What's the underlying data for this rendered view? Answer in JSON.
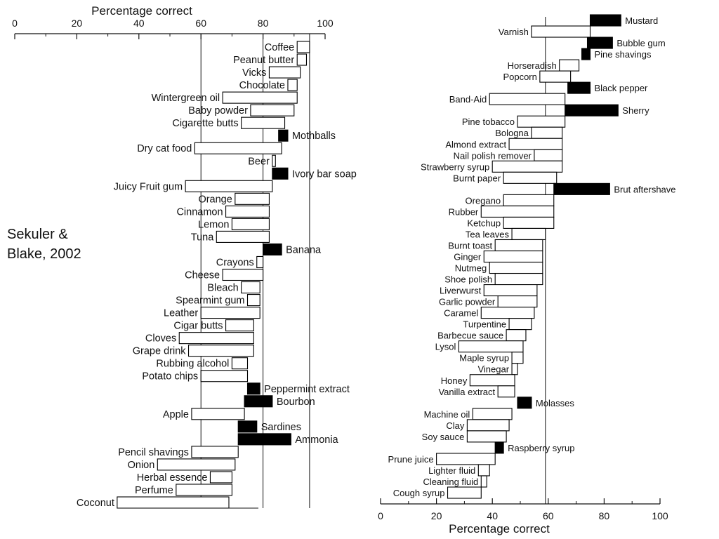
{
  "citation": {
    "line1": "Sekuler &",
    "line2": "Blake, 2002"
  },
  "chart_data": [
    {
      "type": "bar",
      "orientation": "horizontal",
      "xlabel": "Percentage correct",
      "xlim": [
        0,
        100
      ],
      "xticks": [
        0,
        20,
        40,
        60,
        80,
        100
      ],
      "reference_lines": [
        60,
        80,
        95
      ],
      "legend": "none",
      "fill_meaning": "bars span from first-trial score to final score; filled bars run opposite direction",
      "rows": [
        {
          "label": "Coffee",
          "start": 91,
          "end": 95,
          "filled": false
        },
        {
          "label": "Peanut butter",
          "start": 91,
          "end": 94,
          "filled": false
        },
        {
          "label": "Vicks",
          "start": 82,
          "end": 92,
          "filled": false
        },
        {
          "label": "Chocolate",
          "start": 88,
          "end": 91,
          "filled": false
        },
        {
          "label": "Wintergreen oil",
          "start": 67,
          "end": 91,
          "filled": false
        },
        {
          "label": "Baby powder",
          "start": 76,
          "end": 90,
          "filled": false
        },
        {
          "label": "Cigarette butts",
          "start": 73,
          "end": 87,
          "filled": false
        },
        {
          "label": "Mothballs",
          "start": 85,
          "end": 88,
          "filled": true
        },
        {
          "label": "Dry cat food",
          "start": 58,
          "end": 86,
          "filled": false
        },
        {
          "label": "Beer",
          "start": 83,
          "end": 84,
          "filled": false
        },
        {
          "label": "Ivory bar soap",
          "start": 83,
          "end": 88,
          "filled": true
        },
        {
          "label": "Juicy Fruit gum",
          "start": 55,
          "end": 83,
          "filled": false
        },
        {
          "label": "Orange",
          "start": 71,
          "end": 82,
          "filled": false
        },
        {
          "label": "Cinnamon",
          "start": 68,
          "end": 82,
          "filled": false
        },
        {
          "label": "Lemon",
          "start": 70,
          "end": 82,
          "filled": false
        },
        {
          "label": "Tuna",
          "start": 65,
          "end": 82,
          "filled": false
        },
        {
          "label": "Banana",
          "start": 80,
          "end": 86,
          "filled": true
        },
        {
          "label": "Crayons",
          "start": 78,
          "end": 80,
          "filled": false
        },
        {
          "label": "Cheese",
          "start": 67,
          "end": 80,
          "filled": false
        },
        {
          "label": "Bleach",
          "start": 73,
          "end": 79,
          "filled": false
        },
        {
          "label": "Spearmint gum",
          "start": 75,
          "end": 79,
          "filled": false
        },
        {
          "label": "Leather",
          "start": 60,
          "end": 79,
          "filled": false
        },
        {
          "label": "Cigar butts",
          "start": 68,
          "end": 77,
          "filled": false
        },
        {
          "label": "Cloves",
          "start": 53,
          "end": 77,
          "filled": false
        },
        {
          "label": "Grape drink",
          "start": 56,
          "end": 77,
          "filled": false
        },
        {
          "label": "Rubbing alcohol",
          "start": 70,
          "end": 75,
          "filled": false
        },
        {
          "label": "Potato chips",
          "start": 60,
          "end": 75,
          "filled": false
        },
        {
          "label": "Peppermint extract",
          "start": 75,
          "end": 79,
          "filled": true
        },
        {
          "label": "Bourbon",
          "start": 74,
          "end": 83,
          "filled": true
        },
        {
          "label": "Apple",
          "start": 57,
          "end": 74,
          "filled": false
        },
        {
          "label": "Sardines",
          "start": 72,
          "end": 78,
          "filled": true
        },
        {
          "label": "Ammonia",
          "start": 72,
          "end": 89,
          "filled": true
        },
        {
          "label": "Pencil shavings",
          "start": 57,
          "end": 72,
          "filled": false
        },
        {
          "label": "Onion",
          "start": 46,
          "end": 71,
          "filled": false
        },
        {
          "label": "Herbal essence",
          "start": 63,
          "end": 70,
          "filled": false
        },
        {
          "label": "Perfume",
          "start": 52,
          "end": 70,
          "filled": false
        },
        {
          "label": "Coconut",
          "start": 33,
          "end": 69,
          "filled": false
        }
      ]
    },
    {
      "type": "bar",
      "orientation": "horizontal",
      "xlabel": "Percentage correct",
      "xlim": [
        0,
        100
      ],
      "xticks": [
        0,
        20,
        40,
        60,
        80,
        100
      ],
      "reference_lines": [
        59
      ],
      "legend": "none",
      "rows": [
        {
          "label": "Mustard",
          "start": 75,
          "end": 86,
          "filled": true
        },
        {
          "label": "Varnish",
          "start": 54,
          "end": 75,
          "filled": false
        },
        {
          "label": "Bubble gum",
          "start": 74,
          "end": 83,
          "filled": true
        },
        {
          "label": "Pine shavings",
          "start": 72,
          "end": 75,
          "filled": true
        },
        {
          "label": "Horseradish",
          "start": 64,
          "end": 71,
          "filled": false
        },
        {
          "label": "Popcorn",
          "start": 57,
          "end": 68,
          "filled": false
        },
        {
          "label": "Black pepper",
          "start": 67,
          "end": 75,
          "filled": true
        },
        {
          "label": "Band-Aid",
          "start": 39,
          "end": 66,
          "filled": false
        },
        {
          "label": "Sherry",
          "start": 66,
          "end": 85,
          "filled": true
        },
        {
          "label": "Pine tobacco",
          "start": 49,
          "end": 66,
          "filled": false
        },
        {
          "label": "Bologna",
          "start": 54,
          "end": 65,
          "filled": false
        },
        {
          "label": "Almond extract",
          "start": 46,
          "end": 65,
          "filled": false
        },
        {
          "label": "Nail polish remover",
          "start": 55,
          "end": 65,
          "filled": false
        },
        {
          "label": "Strawberry syrup",
          "start": 40,
          "end": 65,
          "filled": false
        },
        {
          "label": "Burnt paper",
          "start": 44,
          "end": 63,
          "filled": false
        },
        {
          "label": "Brut aftershave",
          "start": 62,
          "end": 82,
          "filled": true
        },
        {
          "label": "Oregano",
          "start": 44,
          "end": 62,
          "filled": false
        },
        {
          "label": "Rubber",
          "start": 36,
          "end": 62,
          "filled": false
        },
        {
          "label": "Ketchup",
          "start": 44,
          "end": 62,
          "filled": false
        },
        {
          "label": "Tea leaves",
          "start": 47,
          "end": 59,
          "filled": false
        },
        {
          "label": "Burnt toast",
          "start": 41,
          "end": 58,
          "filled": false
        },
        {
          "label": "Ginger",
          "start": 37,
          "end": 58,
          "filled": false
        },
        {
          "label": "Nutmeg",
          "start": 39,
          "end": 58,
          "filled": false
        },
        {
          "label": "Shoe polish",
          "start": 41,
          "end": 58,
          "filled": false
        },
        {
          "label": "Liverwurst",
          "start": 37,
          "end": 56,
          "filled": false
        },
        {
          "label": "Garlic powder",
          "start": 42,
          "end": 56,
          "filled": false
        },
        {
          "label": "Caramel",
          "start": 36,
          "end": 55,
          "filled": false
        },
        {
          "label": "Turpentine",
          "start": 46,
          "end": 54,
          "filled": false
        },
        {
          "label": "Barbecue sauce",
          "start": 45,
          "end": 52,
          "filled": false
        },
        {
          "label": "Lysol",
          "start": 28,
          "end": 51,
          "filled": false
        },
        {
          "label": "Maple syrup",
          "start": 47,
          "end": 51,
          "filled": false
        },
        {
          "label": "Vinegar",
          "start": 47,
          "end": 49,
          "filled": false
        },
        {
          "label": "Honey",
          "start": 32,
          "end": 48,
          "filled": false
        },
        {
          "label": "Vanilla extract",
          "start": 42,
          "end": 48,
          "filled": false
        },
        {
          "label": "Molasses",
          "start": 49,
          "end": 54,
          "filled": true
        },
        {
          "label": "Machine oil",
          "start": 33,
          "end": 47,
          "filled": false
        },
        {
          "label": "Clay",
          "start": 31,
          "end": 46,
          "filled": false
        },
        {
          "label": "Soy sauce",
          "start": 31,
          "end": 45,
          "filled": false
        },
        {
          "label": "Raspberry syrup",
          "start": 41,
          "end": 44,
          "filled": true
        },
        {
          "label": "Prune juice",
          "start": 20,
          "end": 41,
          "filled": false
        },
        {
          "label": "Lighter fluid",
          "start": 35,
          "end": 39,
          "filled": false
        },
        {
          "label": "Cleaning fluid",
          "start": 36,
          "end": 38,
          "filled": false
        },
        {
          "label": "Cough syrup",
          "start": 24,
          "end": 36,
          "filled": false
        }
      ]
    }
  ]
}
